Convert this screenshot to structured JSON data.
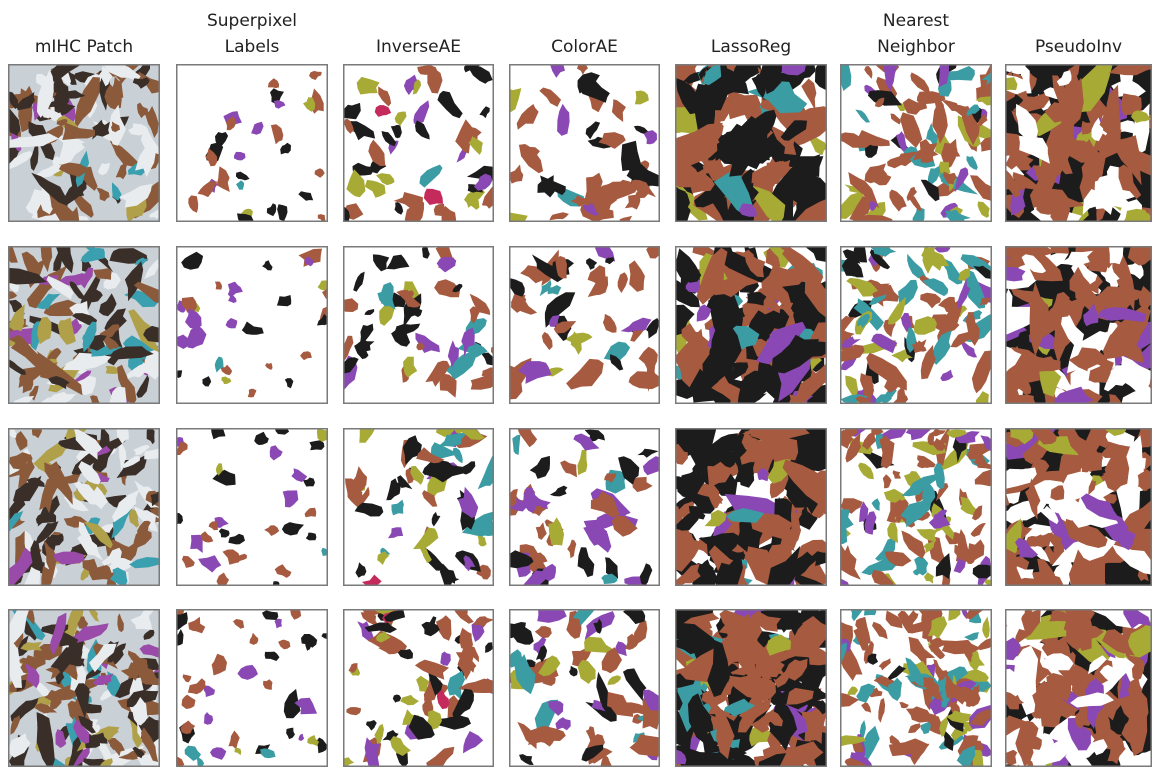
{
  "columns": [
    {
      "label": [
        "mIHC Patch"
      ]
    },
    {
      "label": [
        "Superpixel",
        "Labels"
      ]
    },
    {
      "label": [
        "InverseAE"
      ]
    },
    {
      "label": [
        "ColorAE"
      ]
    },
    {
      "label": [
        "LassoReg"
      ]
    },
    {
      "label": [
        "Nearest",
        "Neighbor"
      ]
    },
    {
      "label": [
        "PseudoInv"
      ]
    }
  ]
}
